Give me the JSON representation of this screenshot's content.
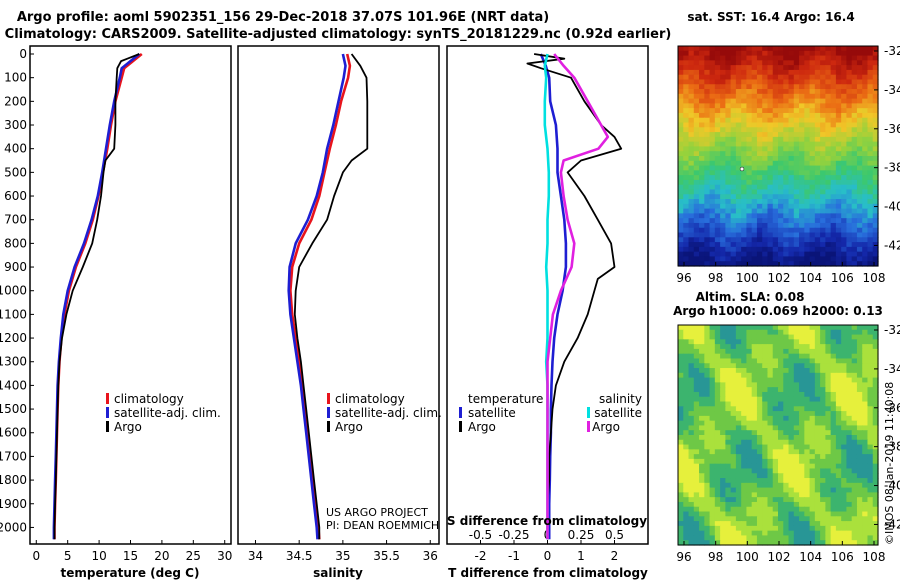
{
  "titles": {
    "line1": "Argo profile: aoml 5902351_156 29-Dec-2018 37.07S 101.96E (NRT data)",
    "line2": "Climatology: CARS2009. Satellite-adjusted climatology: synTS_20181229.nc (0.92d earlier)"
  },
  "depth_ticks": [
    "0",
    "100",
    "200",
    "300",
    "400",
    "500",
    "600",
    "700",
    "800",
    "900",
    "1000",
    "1100",
    "1200",
    "1300",
    "1400",
    "1500",
    "1600",
    "1700",
    "1800",
    "1900",
    "2000"
  ],
  "legend": {
    "climatology": "climatology",
    "satellite_adj": "satellite-adj. clim.",
    "argo": "Argo",
    "temperature_title": "temperature",
    "salinity_title": "salinity",
    "satellite": "satellite"
  },
  "credits": {
    "project": "US ARGO PROJECT",
    "pi": "PI: DEAN ROEMMICH"
  },
  "sat_info": {
    "sst": "sat. SST: 16.4 Argo: 16.4",
    "sla": "Altim. SLA: 0.08",
    "heights": "Argo h1000: 0.069 h2000: 0.13"
  },
  "map": {
    "lon_ticks": [
      "96",
      "98",
      "100",
      "102",
      "104",
      "106",
      "108"
    ],
    "lat_ticks": [
      "-32",
      "-34",
      "-36",
      "-38",
      "-40",
      "-42"
    ]
  },
  "stamp": "©IMOS 08-Jan-2019 11:40:08",
  "colors": {
    "climatology": "#e8141c",
    "satellite_adj": "#1e1ed2",
    "argo": "#000000",
    "s_satellite": "#00e0e0",
    "s_argo": "#e020e0"
  },
  "chart_data": [
    {
      "type": "line",
      "xlabel": "temperature (deg C)",
      "ylabel": "",
      "xlim": [
        -1,
        31
      ],
      "ylim": [
        2070,
        0
      ],
      "xticks": [
        "0",
        "5",
        "10",
        "15",
        "20",
        "25",
        "30"
      ],
      "series": [
        {
          "name": "climatology",
          "color_key": "climatology",
          "depth": [
            0,
            60,
            100,
            200,
            300,
            400,
            500,
            600,
            700,
            800,
            900,
            1000,
            1100,
            1200,
            1300,
            1400,
            1500,
            1600,
            1700,
            1800,
            1900,
            2000,
            2050
          ],
          "values": [
            16.8,
            14.0,
            13.6,
            12.6,
            11.9,
            11.3,
            10.6,
            9.9,
            9.0,
            7.8,
            6.3,
            5.2,
            4.5,
            4.0,
            3.7,
            3.5,
            3.4,
            3.3,
            3.2,
            3.1,
            3.0,
            2.9,
            2.9
          ]
        },
        {
          "name": "satellite-adj. clim.",
          "color_key": "satellite_adj",
          "depth": [
            0,
            60,
            100,
            200,
            300,
            400,
            500,
            600,
            700,
            800,
            900,
            1000,
            1100,
            1200,
            1300,
            1400,
            1500,
            1600,
            1700,
            1800,
            1900,
            2000,
            2050
          ],
          "values": [
            16.4,
            13.6,
            13.3,
            12.4,
            11.7,
            11.1,
            10.5,
            9.8,
            8.8,
            7.6,
            6.1,
            5.0,
            4.3,
            3.9,
            3.6,
            3.4,
            3.3,
            3.2,
            3.1,
            3.0,
            2.9,
            2.8,
            2.8
          ]
        },
        {
          "name": "Argo",
          "color_key": "argo",
          "depth": [
            0,
            30,
            60,
            100,
            200,
            300,
            400,
            450,
            500,
            600,
            700,
            800,
            900,
            1000,
            1100,
            1200,
            1300,
            1400,
            1500,
            1600,
            1700,
            1800,
            1900,
            2000,
            2050
          ],
          "values": [
            16.4,
            13.5,
            12.9,
            12.8,
            12.6,
            12.6,
            12.4,
            11.0,
            10.7,
            10.3,
            9.7,
            8.9,
            7.4,
            5.8,
            4.8,
            4.1,
            3.7,
            3.5,
            3.4,
            3.3,
            3.2,
            3.1,
            3.0,
            2.9,
            2.9
          ]
        }
      ]
    },
    {
      "type": "line",
      "xlabel": "salinity",
      "ylabel": "",
      "xlim": [
        33.8,
        36.1
      ],
      "ylim": [
        2070,
        0
      ],
      "xticks": [
        "34",
        "34.5",
        "35",
        "35.5",
        "36"
      ],
      "series": [
        {
          "name": "climatology",
          "color_key": "climatology",
          "depth": [
            0,
            50,
            100,
            200,
            300,
            400,
            500,
            600,
            700,
            800,
            900,
            1000,
            1100,
            1200,
            1300,
            1400,
            1500,
            1600,
            1700,
            1800,
            1900,
            2000,
            2050
          ],
          "values": [
            35.05,
            35.08,
            35.06,
            34.98,
            34.92,
            34.85,
            34.79,
            34.73,
            34.64,
            34.5,
            34.42,
            34.4,
            34.42,
            34.46,
            34.5,
            34.54,
            34.57,
            34.6,
            34.63,
            34.66,
            34.69,
            34.72,
            34.73
          ]
        },
        {
          "name": "satellite-adj. clim.",
          "color_key": "satellite_adj",
          "depth": [
            0,
            50,
            100,
            200,
            300,
            400,
            500,
            600,
            700,
            800,
            900,
            1000,
            1100,
            1200,
            1300,
            1400,
            1500,
            1600,
            1700,
            1800,
            1900,
            2000,
            2050
          ],
          "values": [
            35.0,
            35.03,
            35.01,
            34.95,
            34.89,
            34.82,
            34.77,
            34.7,
            34.6,
            34.46,
            34.39,
            34.38,
            34.4,
            34.44,
            34.48,
            34.52,
            34.55,
            34.58,
            34.61,
            34.64,
            34.67,
            34.7,
            34.71
          ]
        },
        {
          "name": "Argo",
          "color_key": "argo",
          "depth": [
            0,
            50,
            100,
            200,
            300,
            400,
            450,
            500,
            600,
            700,
            800,
            900,
            1000,
            1100,
            1200,
            1300,
            1400,
            1500,
            1600,
            1700,
            1800,
            1900,
            2000,
            2050
          ],
          "values": [
            35.1,
            35.2,
            35.27,
            35.28,
            35.28,
            35.28,
            35.1,
            35.0,
            34.9,
            34.82,
            34.65,
            34.5,
            34.46,
            34.45,
            34.48,
            34.52,
            34.55,
            34.58,
            34.61,
            34.64,
            34.67,
            34.7,
            34.73,
            34.73
          ]
        }
      ]
    },
    {
      "type": "line",
      "xlabel": "T difference from climatology",
      "ylabel": "",
      "xlim": [
        -3,
        3
      ],
      "ylim": [
        2070,
        0
      ],
      "xticks": [
        "-2",
        "-1",
        "0",
        "1",
        "2"
      ],
      "top_xlabel": "S difference from climatology",
      "top_xticks": [
        "-0.5",
        "-0.25",
        "0",
        "0.25",
        "0.5"
      ],
      "top_xlim": [
        -0.75,
        0.75
      ],
      "series": [
        {
          "name": "temperature satellite",
          "axis": "T",
          "color_key": "satellite_adj",
          "depth": [
            0,
            50,
            100,
            200,
            300,
            400,
            500,
            600,
            700,
            800,
            900,
            1000,
            1100,
            1200,
            1300,
            1400,
            1500,
            1600,
            1700,
            1800,
            1900,
            2000,
            2050
          ],
          "values": [
            -0.2,
            -0.05,
            0.05,
            0.08,
            0.25,
            0.3,
            0.3,
            0.4,
            0.5,
            0.55,
            0.55,
            0.45,
            0.3,
            0.2,
            0.15,
            0.12,
            0.1,
            0.1,
            0.08,
            0.07,
            0.05,
            0.05,
            0.05
          ]
        },
        {
          "name": "temperature Argo",
          "axis": "T",
          "color_key": "argo",
          "depth": [
            0,
            20,
            40,
            60,
            100,
            200,
            300,
            350,
            400,
            450,
            500,
            600,
            700,
            800,
            900,
            950,
            1000,
            1100,
            1200,
            1300,
            1400,
            1500,
            1600,
            1700,
            1800,
            1900,
            2000,
            2050
          ],
          "values": [
            -0.4,
            0.5,
            -0.6,
            -0.2,
            0.7,
            1.1,
            1.6,
            2.0,
            2.2,
            1.0,
            0.6,
            1.1,
            1.5,
            1.9,
            2.0,
            1.5,
            1.4,
            1.2,
            0.9,
            0.5,
            0.25,
            0.15,
            0.1,
            0.05,
            0.05,
            0.0,
            0.0,
            0.0
          ]
        },
        {
          "name": "salinity satellite",
          "axis": "S",
          "color_key": "s_satellite",
          "depth": [
            0,
            50,
            100,
            200,
            300,
            400,
            500,
            600,
            700,
            800,
            900,
            1000,
            1100,
            1200,
            1300,
            1400,
            1500,
            1600,
            1700,
            1800,
            1900,
            2000,
            2050
          ],
          "values": [
            0.0,
            -0.02,
            -0.01,
            -0.02,
            -0.02,
            0.0,
            0.01,
            0.01,
            0.0,
            0.0,
            -0.01,
            0.0,
            0.0,
            0.0,
            -0.01,
            0.0,
            0.0,
            0.0,
            0.0,
            0.0,
            0.0,
            0.0,
            0.0
          ]
        },
        {
          "name": "salinity Argo",
          "axis": "S",
          "color_key": "s_argo",
          "depth": [
            0,
            50,
            100,
            200,
            300,
            350,
            400,
            450,
            500,
            600,
            700,
            800,
            900,
            1000,
            1100,
            1200,
            1300,
            1400,
            1500,
            1600,
            1700,
            1800,
            1900,
            2000,
            2050
          ],
          "values": [
            0.05,
            0.12,
            0.2,
            0.3,
            0.4,
            0.45,
            0.38,
            0.12,
            0.1,
            0.12,
            0.15,
            0.2,
            0.18,
            0.1,
            0.04,
            0.02,
            0.0,
            0.0,
            0.0,
            0.0,
            0.0,
            0.0,
            0.0,
            0.0,
            0.0
          ]
        }
      ]
    }
  ]
}
